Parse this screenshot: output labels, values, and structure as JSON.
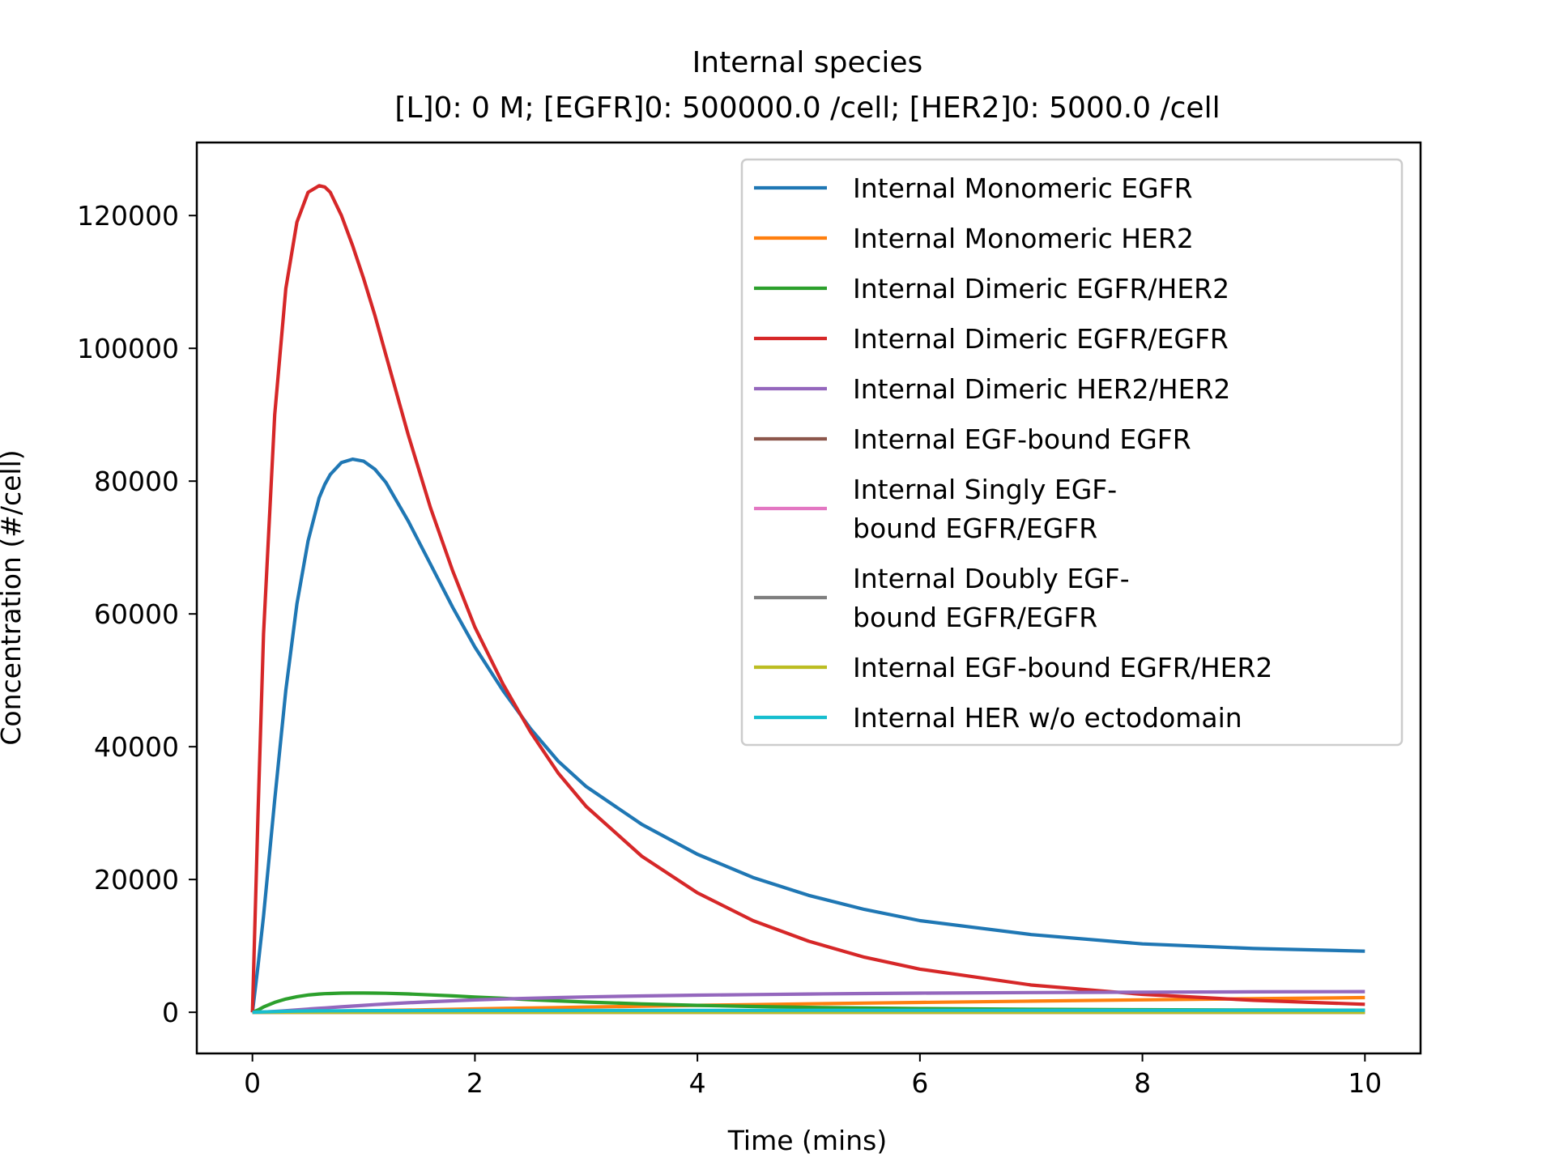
{
  "chart_data": {
    "type": "line",
    "title": "Internal species",
    "subtitle": "[L]0: 0 M; [EGFR]0: 500000.0 /cell; [HER2]0: 5000.0 /cell",
    "xlabel": "Time (mins)",
    "ylabel": "Concentration (#/cell)",
    "xlim": [
      -0.5,
      10.5
    ],
    "ylim": [
      -6200,
      131000
    ],
    "xticks": [
      0,
      2,
      4,
      6,
      8,
      10
    ],
    "xtick_labels": [
      "0",
      "2",
      "4",
      "6",
      "8",
      "10"
    ],
    "yticks": [
      0,
      20000,
      40000,
      60000,
      80000,
      100000,
      120000
    ],
    "ytick_labels": [
      "0",
      "20000",
      "40000",
      "60000",
      "80000",
      "100000",
      "120000"
    ],
    "grid": false,
    "legend_position": "top-right",
    "x": [
      0,
      0.05,
      0.1,
      0.2,
      0.3,
      0.4,
      0.5,
      0.6,
      0.65,
      0.7,
      0.8,
      0.9,
      1.0,
      1.1,
      1.2,
      1.4,
      1.6,
      1.8,
      2.0,
      2.25,
      2.5,
      2.75,
      3.0,
      3.5,
      4.0,
      4.5,
      5.0,
      5.5,
      6.0,
      7.0,
      8.0,
      9.0,
      10.0
    ],
    "series": [
      {
        "name": "Internal Monomeric EGFR",
        "color": "#1f77b4",
        "values": [
          0,
          7000,
          14500,
          32000,
          48500,
          61500,
          71000,
          77500,
          79500,
          81000,
          82800,
          83300,
          83000,
          81800,
          79800,
          74000,
          67500,
          61000,
          55000,
          48500,
          42700,
          37800,
          34000,
          28300,
          23800,
          20300,
          17600,
          15500,
          13800,
          11700,
          10300,
          9600,
          9200
        ]
      },
      {
        "name": "Internal Monomeric HER2",
        "color": "#ff7f0e",
        "values": [
          0,
          2,
          5,
          15,
          30,
          50,
          70,
          95,
          105,
          120,
          150,
          180,
          210,
          240,
          270,
          330,
          390,
          450,
          510,
          580,
          650,
          720,
          790,
          920,
          1040,
          1160,
          1270,
          1380,
          1480,
          1680,
          1870,
          2050,
          2220
        ]
      },
      {
        "name": "Internal Dimeric EGFR/HER2",
        "color": "#2ca02c",
        "values": [
          0,
          350,
          800,
          1500,
          2000,
          2350,
          2600,
          2750,
          2800,
          2830,
          2880,
          2900,
          2900,
          2890,
          2860,
          2760,
          2620,
          2470,
          2300,
          2100,
          1900,
          1720,
          1550,
          1260,
          1040,
          870,
          740,
          640,
          560,
          450,
          380,
          340,
          310
        ]
      },
      {
        "name": "Internal Dimeric EGFR/EGFR",
        "color": "#d62728",
        "values": [
          0,
          30000,
          57000,
          90000,
          109000,
          119000,
          123500,
          124500,
          124300,
          123500,
          120000,
          115500,
          110500,
          105000,
          99000,
          87000,
          76000,
          66500,
          58000,
          49500,
          42200,
          36000,
          31000,
          23500,
          18000,
          13800,
          10700,
          8300,
          6500,
          4100,
          2700,
          1800,
          1200
        ]
      },
      {
        "name": "Internal Dimeric HER2/HER2",
        "color": "#9467bd",
        "values": [
          0,
          20,
          50,
          130,
          240,
          360,
          480,
          600,
          660,
          720,
          830,
          940,
          1050,
          1150,
          1250,
          1430,
          1590,
          1730,
          1860,
          2000,
          2120,
          2220,
          2310,
          2460,
          2580,
          2670,
          2750,
          2820,
          2880,
          2970,
          3030,
          3080,
          3120
        ]
      },
      {
        "name": "Internal EGF-bound EGFR",
        "color": "#8c564b",
        "values": [
          0,
          0,
          0,
          0,
          0,
          0,
          0,
          0,
          0,
          0,
          0,
          0,
          0,
          0,
          0,
          0,
          0,
          0,
          0,
          0,
          0,
          0,
          0,
          0,
          0,
          0,
          0,
          0,
          0,
          0,
          0,
          0,
          0
        ]
      },
      {
        "name": "Internal Singly EGF-bound EGFR/EGFR",
        "color": "#e377c2",
        "values": [
          0,
          0,
          0,
          0,
          0,
          0,
          0,
          0,
          0,
          0,
          0,
          0,
          0,
          0,
          0,
          0,
          0,
          0,
          0,
          0,
          0,
          0,
          0,
          0,
          0,
          0,
          0,
          0,
          0,
          0,
          0,
          0,
          0
        ]
      },
      {
        "name": "Internal Doubly EGF-bound EGFR/EGFR",
        "color": "#7f7f7f",
        "values": [
          0,
          0,
          0,
          0,
          0,
          0,
          0,
          0,
          0,
          0,
          0,
          0,
          0,
          0,
          0,
          0,
          0,
          0,
          0,
          0,
          0,
          0,
          0,
          0,
          0,
          0,
          0,
          0,
          0,
          0,
          0,
          0,
          0
        ]
      },
      {
        "name": "Internal EGF-bound EGFR/HER2",
        "color": "#bcbd22",
        "values": [
          0,
          0,
          0,
          0,
          0,
          0,
          0,
          0,
          0,
          0,
          0,
          0,
          0,
          0,
          0,
          0,
          0,
          0,
          0,
          0,
          0,
          0,
          0,
          0,
          0,
          0,
          0,
          0,
          0,
          0,
          0,
          0,
          0
        ]
      },
      {
        "name": "Internal HER w/o ectodomain",
        "color": "#17becf",
        "values": [
          0,
          30,
          60,
          110,
          150,
          180,
          200,
          215,
          220,
          225,
          232,
          238,
          242,
          246,
          250,
          256,
          262,
          266,
          270,
          274,
          277,
          280,
          283,
          287,
          290,
          293,
          295,
          297,
          298,
          300,
          301,
          302,
          303
        ]
      }
    ],
    "legend": [
      {
        "lines": [
          "Internal Monomeric EGFR"
        ]
      },
      {
        "lines": [
          "Internal Monomeric HER2"
        ]
      },
      {
        "lines": [
          "Internal Dimeric EGFR/HER2"
        ]
      },
      {
        "lines": [
          "Internal Dimeric EGFR/EGFR"
        ]
      },
      {
        "lines": [
          "Internal Dimeric HER2/HER2"
        ]
      },
      {
        "lines": [
          "Internal EGF-bound EGFR"
        ]
      },
      {
        "lines": [
          "Internal Singly EGF-",
          "bound EGFR/EGFR"
        ]
      },
      {
        "lines": [
          "Internal Doubly EGF-",
          "bound EGFR/EGFR"
        ]
      },
      {
        "lines": [
          "Internal EGF-bound EGFR/HER2"
        ]
      },
      {
        "lines": [
          "Internal HER w/o ectodomain"
        ]
      }
    ]
  }
}
